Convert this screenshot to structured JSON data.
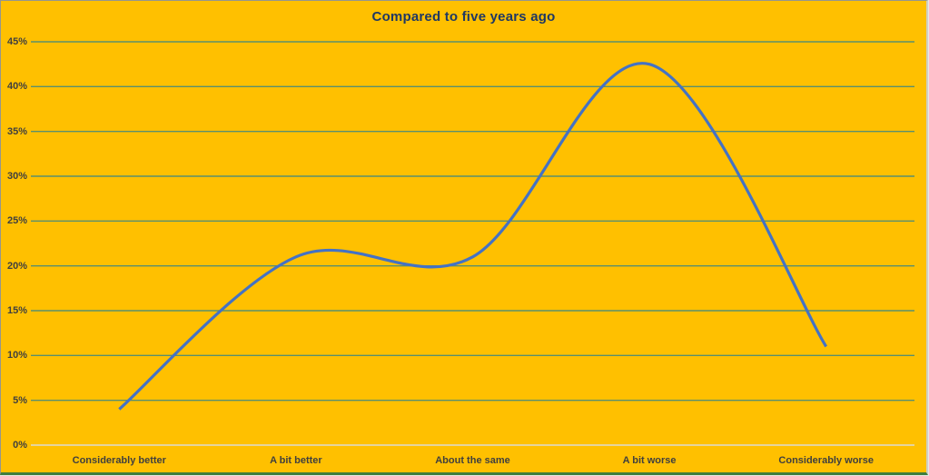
{
  "chart": {
    "title": "Compared to five years ago",
    "colors": {
      "background": "#FFC000",
      "line": "#4472C4",
      "gridline": "#5A8F6E",
      "zero_line": "#DBDBD3",
      "title_text": "#1F3864",
      "label_text": "#3f3f3f",
      "border": "#96968c",
      "border_bottom": "#3e7d3e"
    }
  },
  "chart_data": {
    "type": "line",
    "line_style": "smooth",
    "title": "Compared to five years ago",
    "categories": [
      "Considerably better",
      "A bit better",
      "About the same",
      "A bit worse",
      "Considerably worse"
    ],
    "values": [
      4,
      21,
      21,
      42.5,
      11
    ],
    "xlabel": "",
    "ylabel": "",
    "ylim": [
      0,
      45
    ],
    "ytick_step": 5,
    "ytick_labels": [
      "0%",
      "5%",
      "10%",
      "15%",
      "20%",
      "25%",
      "30%",
      "35%",
      "40%",
      "45%"
    ],
    "grid": true,
    "legend": false
  }
}
